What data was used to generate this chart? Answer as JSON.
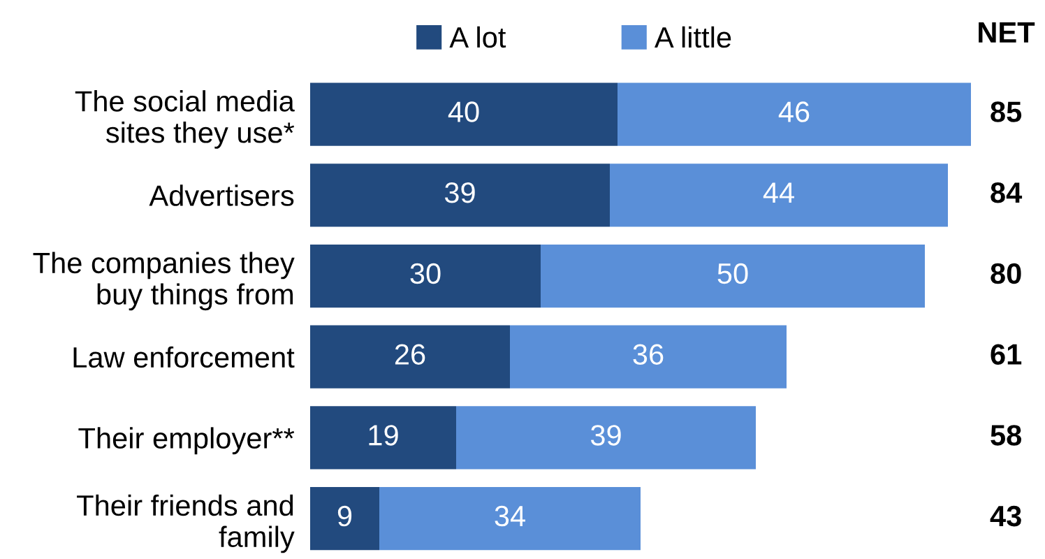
{
  "chart_data": {
    "type": "bar",
    "orientation": "horizontal",
    "stacked": true,
    "data_labels": true,
    "legend": "top",
    "grid": false,
    "categories": [
      "The social media\nsites they use*",
      "Advertisers",
      "The companies they\nbuy things from",
      "Law enforcement",
      "Their employer**",
      "Their friends and\nfamily"
    ],
    "series": [
      {
        "name": "A lot",
        "color": "#224a7e",
        "values": [
          40,
          39,
          30,
          26,
          19,
          9
        ]
      },
      {
        "name": "A little",
        "color": "#5a8fd8",
        "values": [
          46,
          44,
          50,
          36,
          39,
          34
        ]
      }
    ],
    "annotations": [
      "NET",
      "85",
      "84",
      "80",
      "61",
      "58",
      "43"
    ]
  }
}
